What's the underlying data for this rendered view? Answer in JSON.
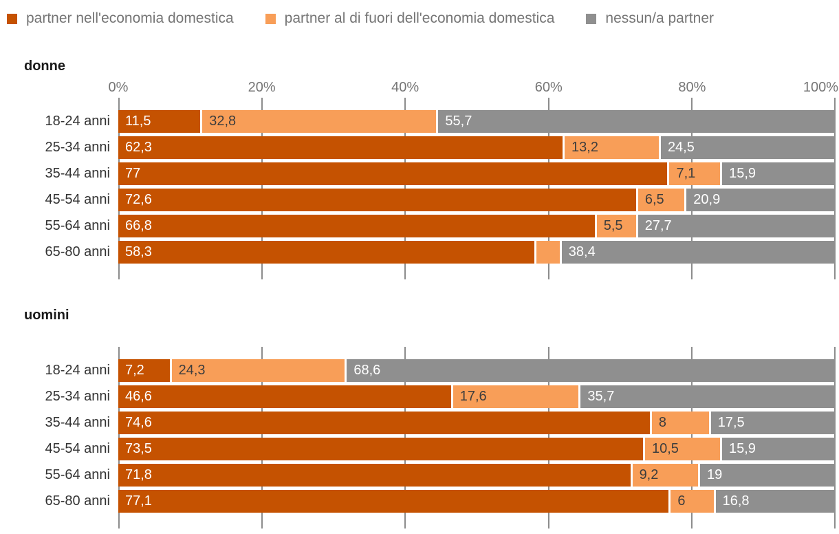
{
  "chart_data": {
    "type": "bar",
    "stacked": true,
    "orientation": "horizontal",
    "value_unit": "%",
    "xlim": [
      0,
      100
    ],
    "grid": true,
    "legend_position": "top",
    "x_tick_values": [
      0,
      20,
      40,
      60,
      80,
      100
    ],
    "x_tick_labels": [
      "0%",
      "20%",
      "40%",
      "60%",
      "80%",
      "100%"
    ],
    "series": [
      {
        "name": "partner nell'economia domestica",
        "color": "#c55201",
        "label_color": "#ffffff"
      },
      {
        "name": "partner al di fuori dell'economia domestica",
        "color": "#f89e58",
        "label_color": "#3d3d3d"
      },
      {
        "name": "nessun/a partner",
        "color": "#8f8f8f",
        "label_color": "#ffffff"
      }
    ],
    "groups": [
      {
        "title": "donne",
        "show_axis_labels": true,
        "categories": [
          "18-24 anni",
          "25-34 anni",
          "35-44 anni",
          "45-54 anni",
          "55-64 anni",
          "65-80 anni"
        ],
        "rows": [
          {
            "values": [
              11.5,
              32.8,
              55.7
            ],
            "labels": [
              "11,5",
              "32,8",
              "55,7"
            ]
          },
          {
            "values": [
              62.3,
              13.2,
              24.5
            ],
            "labels": [
              "62,3",
              "13,2",
              "24,5"
            ]
          },
          {
            "values": [
              77.0,
              7.1,
              15.9
            ],
            "labels": [
              "77",
              "7,1",
              "15,9"
            ]
          },
          {
            "values": [
              72.6,
              6.5,
              20.9
            ],
            "labels": [
              "72,6",
              "6,5",
              "20,9"
            ]
          },
          {
            "values": [
              66.8,
              5.5,
              27.7
            ],
            "labels": [
              "66,8",
              "5,5",
              "27,7"
            ]
          },
          {
            "values": [
              58.3,
              3.3,
              38.4
            ],
            "labels": [
              "58,3",
              "",
              "38,4"
            ]
          }
        ]
      },
      {
        "title": "uomini",
        "show_axis_labels": false,
        "categories": [
          "18-24 anni",
          "25-34 anni",
          "35-44 anni",
          "45-54 anni",
          "55-64 anni",
          "65-80 anni"
        ],
        "rows": [
          {
            "values": [
              7.2,
              24.3,
              68.6
            ],
            "labels": [
              "7,2",
              "24,3",
              "68,6"
            ]
          },
          {
            "values": [
              46.6,
              17.6,
              35.7
            ],
            "labels": [
              "46,6",
              "17,6",
              "35,7"
            ]
          },
          {
            "values": [
              74.6,
              8.0,
              17.5
            ],
            "labels": [
              "74,6",
              "8",
              "17,5"
            ]
          },
          {
            "values": [
              73.5,
              10.5,
              15.9
            ],
            "labels": [
              "73,5",
              "10,5",
              "15,9"
            ]
          },
          {
            "values": [
              71.8,
              9.2,
              19.0
            ],
            "labels": [
              "71,8",
              "9,2",
              "19"
            ]
          },
          {
            "values": [
              77.1,
              6.0,
              16.8
            ],
            "labels": [
              "77,1",
              "6",
              "16,8"
            ]
          }
        ]
      }
    ],
    "colors": {
      "grid": "#8c8c8c",
      "axis_label": "#757575",
      "category_label": "#333333",
      "section_title": "#1a1a1a",
      "legend_text": "#757575",
      "background": "#ffffff"
    }
  }
}
